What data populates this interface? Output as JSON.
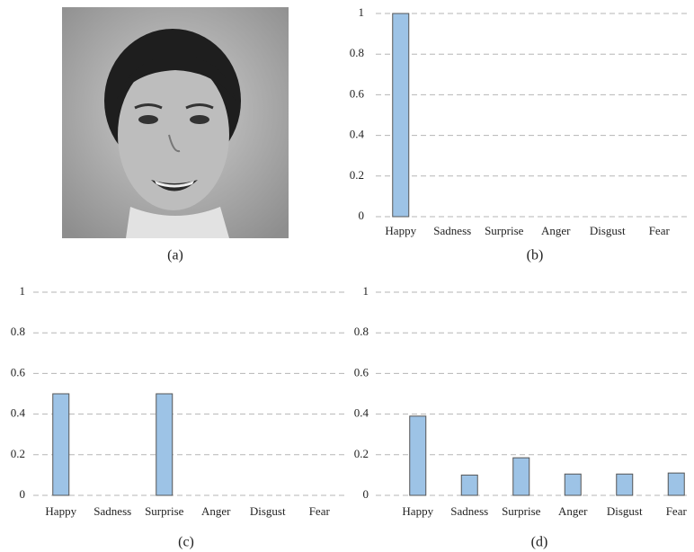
{
  "image": {
    "caption": "(a)"
  },
  "chart_data": [
    {
      "type": "bar",
      "caption": "(b)",
      "categories": [
        "Happy",
        "Sadness",
        "Surprise",
        "Anger",
        "Disgust",
        "Fear"
      ],
      "values": [
        1,
        0,
        0,
        0,
        0,
        0
      ],
      "color": "#9dc3e6",
      "ylim": [
        0,
        1
      ],
      "yticks": [
        0,
        0.2,
        0.4,
        0.6,
        0.8,
        1
      ],
      "grid": true
    },
    {
      "type": "bar",
      "caption": "(c)",
      "categories": [
        "Happy",
        "Sadness",
        "Surprise",
        "Anger",
        "Disgust",
        "Fear"
      ],
      "values": [
        0.5,
        0,
        0.5,
        0,
        0,
        0
      ],
      "color": "#9dc3e6",
      "ylim": [
        0,
        1
      ],
      "yticks": [
        0,
        0.2,
        0.4,
        0.6,
        0.8,
        1
      ],
      "grid": true
    },
    {
      "type": "bar",
      "caption": "(d)",
      "categories": [
        "Happy",
        "Sadness",
        "Surprise",
        "Anger",
        "Disgust",
        "Fear"
      ],
      "values": [
        0.39,
        0.1,
        0.185,
        0.105,
        0.105,
        0.11
      ],
      "color": "#9dc3e6",
      "ylim": [
        0,
        1
      ],
      "yticks": [
        0,
        0.2,
        0.4,
        0.6,
        0.8,
        1
      ],
      "grid": true
    }
  ]
}
